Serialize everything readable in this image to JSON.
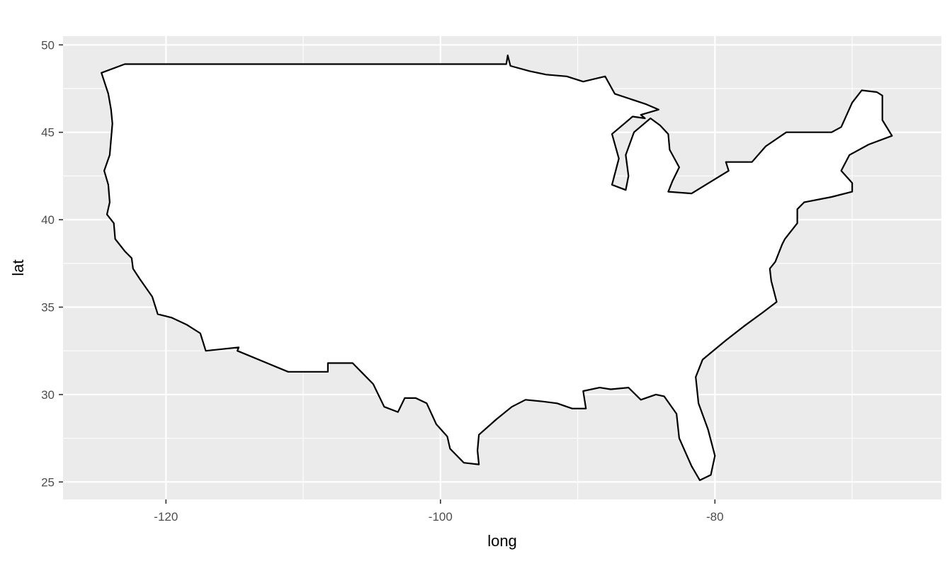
{
  "chart_data": {
    "type": "map",
    "geometry": "outline of the contiguous United States (long/lat polygon)",
    "xlabel": "long",
    "ylabel": "lat",
    "xlim": [
      -127.5,
      -63.5
    ],
    "ylim": [
      24,
      50.5
    ],
    "x_ticks": [
      -120,
      -100,
      -80
    ],
    "x_tick_labels": [
      "-120",
      "-100",
      "-80"
    ],
    "x_minor_ticks": [
      -110,
      -90,
      -70
    ],
    "y_ticks": [
      25,
      30,
      35,
      40,
      45,
      50
    ],
    "y_tick_labels": [
      "25",
      "30",
      "35",
      "40",
      "45",
      "50"
    ],
    "y_minor_ticks": [
      27.5,
      32.5,
      37.5,
      42.5,
      47.5
    ],
    "grid": true,
    "panel_background": "#ebebeb",
    "grid_color": "#ffffff",
    "fill": "#ffffff",
    "outline_color": "#000000",
    "outline": [
      [
        -124.7,
        48.4
      ],
      [
        -123.0,
        48.9
      ],
      [
        -95.2,
        48.9
      ],
      [
        -95.1,
        49.4
      ],
      [
        -94.9,
        48.8
      ],
      [
        -93.5,
        48.5
      ],
      [
        -92.3,
        48.3
      ],
      [
        -90.8,
        48.2
      ],
      [
        -89.6,
        47.9
      ],
      [
        -88.0,
        48.2
      ],
      [
        -87.3,
        47.2
      ],
      [
        -85.0,
        46.6
      ],
      [
        -84.1,
        46.3
      ],
      [
        -85.4,
        46.0
      ],
      [
        -85.1,
        45.8
      ],
      [
        -86.0,
        45.9
      ],
      [
        -87.5,
        44.9
      ],
      [
        -87.0,
        43.5
      ],
      [
        -87.5,
        42.0
      ],
      [
        -86.5,
        41.7
      ],
      [
        -86.3,
        42.5
      ],
      [
        -86.5,
        43.7
      ],
      [
        -85.9,
        45.0
      ],
      [
        -84.7,
        45.8
      ],
      [
        -84.0,
        45.4
      ],
      [
        -83.4,
        44.9
      ],
      [
        -83.3,
        44.0
      ],
      [
        -82.6,
        43.0
      ],
      [
        -83.1,
        42.2
      ],
      [
        -83.4,
        41.6
      ],
      [
        -81.7,
        41.5
      ],
      [
        -79.0,
        42.8
      ],
      [
        -79.2,
        43.3
      ],
      [
        -77.3,
        43.3
      ],
      [
        -76.3,
        44.2
      ],
      [
        -74.8,
        45.0
      ],
      [
        -71.5,
        45.0
      ],
      [
        -70.8,
        45.3
      ],
      [
        -70.0,
        46.7
      ],
      [
        -69.3,
        47.4
      ],
      [
        -68.2,
        47.3
      ],
      [
        -67.8,
        47.1
      ],
      [
        -67.8,
        45.7
      ],
      [
        -67.1,
        44.8
      ],
      [
        -68.8,
        44.3
      ],
      [
        -70.2,
        43.7
      ],
      [
        -70.8,
        42.8
      ],
      [
        -70.0,
        42.1
      ],
      [
        -70.0,
        41.6
      ],
      [
        -71.5,
        41.3
      ],
      [
        -73.5,
        41.0
      ],
      [
        -74.0,
        40.6
      ],
      [
        -74.0,
        39.8
      ],
      [
        -74.9,
        38.9
      ],
      [
        -75.1,
        38.6
      ],
      [
        -75.6,
        37.6
      ],
      [
        -76.0,
        37.2
      ],
      [
        -75.9,
        36.5
      ],
      [
        -75.5,
        35.3
      ],
      [
        -76.5,
        34.7
      ],
      [
        -77.9,
        33.9
      ],
      [
        -79.2,
        33.1
      ],
      [
        -80.9,
        32.0
      ],
      [
        -81.4,
        31.0
      ],
      [
        -81.2,
        29.5
      ],
      [
        -80.5,
        28.0
      ],
      [
        -80.0,
        26.5
      ],
      [
        -80.3,
        25.4
      ],
      [
        -81.1,
        25.1
      ],
      [
        -81.7,
        25.9
      ],
      [
        -82.6,
        27.5
      ],
      [
        -82.8,
        28.9
      ],
      [
        -83.7,
        29.9
      ],
      [
        -84.3,
        30.0
      ],
      [
        -85.4,
        29.7
      ],
      [
        -86.3,
        30.4
      ],
      [
        -87.6,
        30.3
      ],
      [
        -88.4,
        30.4
      ],
      [
        -89.6,
        30.2
      ],
      [
        -89.4,
        29.2
      ],
      [
        -90.4,
        29.2
      ],
      [
        -91.5,
        29.5
      ],
      [
        -92.5,
        29.6
      ],
      [
        -93.8,
        29.7
      ],
      [
        -94.8,
        29.3
      ],
      [
        -95.9,
        28.6
      ],
      [
        -97.2,
        27.7
      ],
      [
        -97.3,
        26.8
      ],
      [
        -97.2,
        26.0
      ],
      [
        -98.3,
        26.1
      ],
      [
        -99.3,
        26.9
      ],
      [
        -99.5,
        27.6
      ],
      [
        -100.3,
        28.3
      ],
      [
        -101.0,
        29.5
      ],
      [
        -101.8,
        29.8
      ],
      [
        -102.6,
        29.8
      ],
      [
        -103.1,
        29.0
      ],
      [
        -104.1,
        29.3
      ],
      [
        -104.9,
        30.6
      ],
      [
        -106.4,
        31.8
      ],
      [
        -108.2,
        31.8
      ],
      [
        -108.2,
        31.3
      ],
      [
        -111.1,
        31.3
      ],
      [
        -114.8,
        32.5
      ],
      [
        -114.7,
        32.7
      ],
      [
        -117.1,
        32.5
      ],
      [
        -117.5,
        33.5
      ],
      [
        -118.5,
        34.0
      ],
      [
        -119.6,
        34.4
      ],
      [
        -120.6,
        34.6
      ],
      [
        -121.0,
        35.6
      ],
      [
        -121.9,
        36.6
      ],
      [
        -122.4,
        37.2
      ],
      [
        -122.5,
        37.8
      ],
      [
        -123.0,
        38.2
      ],
      [
        -123.7,
        38.9
      ],
      [
        -123.8,
        39.8
      ],
      [
        -124.3,
        40.3
      ],
      [
        -124.1,
        41.0
      ],
      [
        -124.2,
        42.0
      ],
      [
        -124.5,
        42.8
      ],
      [
        -124.1,
        43.7
      ],
      [
        -123.9,
        45.5
      ],
      [
        -124.0,
        46.3
      ],
      [
        -124.2,
        47.2
      ],
      [
        -124.7,
        48.4
      ]
    ]
  }
}
